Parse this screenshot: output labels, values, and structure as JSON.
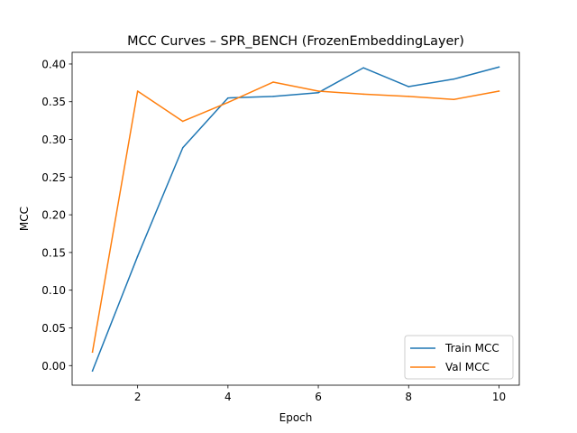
{
  "chart_data": {
    "type": "line",
    "title": "MCC Curves – SPR_BENCH (FrozenEmbeddingLayer)",
    "xlabel": "Epoch",
    "ylabel": "MCC",
    "x": [
      1,
      2,
      3,
      4,
      5,
      6,
      7,
      8,
      9,
      10
    ],
    "xlim": [
      0.55,
      10.45
    ],
    "ylim": [
      -0.026,
      0.4155
    ],
    "xticks": [
      2,
      4,
      6,
      8,
      10
    ],
    "xtick_labels": [
      "2",
      "4",
      "6",
      "8",
      "10"
    ],
    "yticks": [
      0.0,
      0.05,
      0.1,
      0.15,
      0.2,
      0.25,
      0.3,
      0.35,
      0.4
    ],
    "ytick_labels": [
      "0.00",
      "0.05",
      "0.10",
      "0.15",
      "0.20",
      "0.25",
      "0.30",
      "0.35",
      "0.40"
    ],
    "grid": false,
    "legend_position": "lower-right",
    "series": [
      {
        "name": "Train MCC",
        "color": "#1f77b4",
        "values": [
          -0.007,
          0.145,
          0.289,
          0.355,
          0.357,
          0.362,
          0.395,
          0.37,
          0.38,
          0.396
        ]
      },
      {
        "name": "Val MCC",
        "color": "#ff7f0e",
        "values": [
          0.018,
          0.364,
          0.324,
          0.349,
          0.376,
          0.364,
          0.36,
          0.357,
          0.353,
          0.364
        ]
      }
    ]
  }
}
